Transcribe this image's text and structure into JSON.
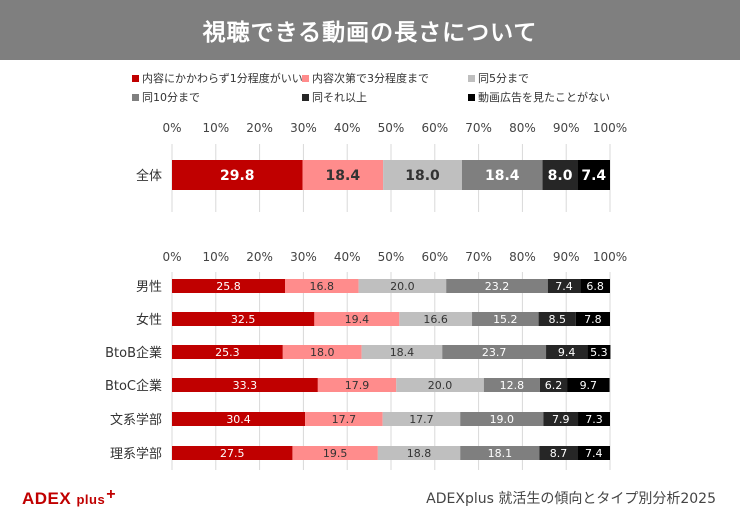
{
  "title": "視聴できる動画の長さについて",
  "legend": [
    {
      "name": "内容にかかわらず1分程度がいい",
      "color": "#c00000"
    },
    {
      "name": "内容次第で3分程度まで",
      "color": "#ff8c8c"
    },
    {
      "name": "同5分まで",
      "color": "#bfbfbf"
    },
    {
      "name": "同10分まで",
      "color": "#7f7f7f"
    },
    {
      "name": "同それ以上",
      "color": "#262626"
    },
    {
      "name": "動画広告を見たことがない",
      "color": "#000000"
    }
  ],
  "chart_data": [
    {
      "type": "bar",
      "orientation": "horizontal",
      "stacked": "100%",
      "xlim": [
        0,
        100
      ],
      "ticks": [
        "0%",
        "10%",
        "20%",
        "30%",
        "40%",
        "50%",
        "60%",
        "70%",
        "80%",
        "90%",
        "100%"
      ],
      "categories": [
        "全体"
      ],
      "series": [
        {
          "name": "内容にかかわらず1分程度がいい",
          "values": [
            29.8
          ]
        },
        {
          "name": "内容次第で3分程度まで",
          "values": [
            18.4
          ]
        },
        {
          "name": "同5分まで",
          "values": [
            18.0
          ]
        },
        {
          "name": "同10分まで",
          "values": [
            18.4
          ]
        },
        {
          "name": "同それ以上",
          "values": [
            8.0
          ]
        },
        {
          "name": "動画広告を見たことがない",
          "values": [
            7.4
          ]
        }
      ]
    },
    {
      "type": "bar",
      "orientation": "horizontal",
      "stacked": "100%",
      "xlim": [
        0,
        100
      ],
      "ticks": [
        "0%",
        "10%",
        "20%",
        "30%",
        "40%",
        "50%",
        "60%",
        "70%",
        "80%",
        "90%",
        "100%"
      ],
      "categories": [
        "男性",
        "女性",
        "BtoB企業",
        "BtoC企業",
        "文系学部",
        "理系学部"
      ],
      "series": [
        {
          "name": "内容にかかわらず1分程度がいい",
          "values": [
            25.8,
            32.5,
            25.3,
            33.3,
            30.4,
            27.5
          ]
        },
        {
          "name": "内容次第で3分程度まで",
          "values": [
            16.8,
            19.4,
            18.0,
            17.9,
            17.7,
            19.5
          ]
        },
        {
          "name": "同5分まで",
          "values": [
            20.0,
            16.6,
            18.4,
            20.0,
            17.7,
            18.8
          ]
        },
        {
          "name": "同10分まで",
          "values": [
            23.2,
            15.2,
            23.7,
            12.8,
            19.0,
            18.1
          ]
        },
        {
          "name": "同それ以上",
          "values": [
            7.4,
            8.5,
            9.4,
            6.2,
            7.9,
            8.7
          ]
        },
        {
          "name": "動画広告を見たことがない",
          "values": [
            6.8,
            7.8,
            5.3,
            9.7,
            7.3,
            7.4
          ]
        }
      ]
    }
  ],
  "footer": {
    "logo_main": "ADEX",
    "logo_sub": "plus",
    "logo_sup": "+",
    "source": "ADEXplus 就活生の傾向とタイプ別分析2025"
  }
}
